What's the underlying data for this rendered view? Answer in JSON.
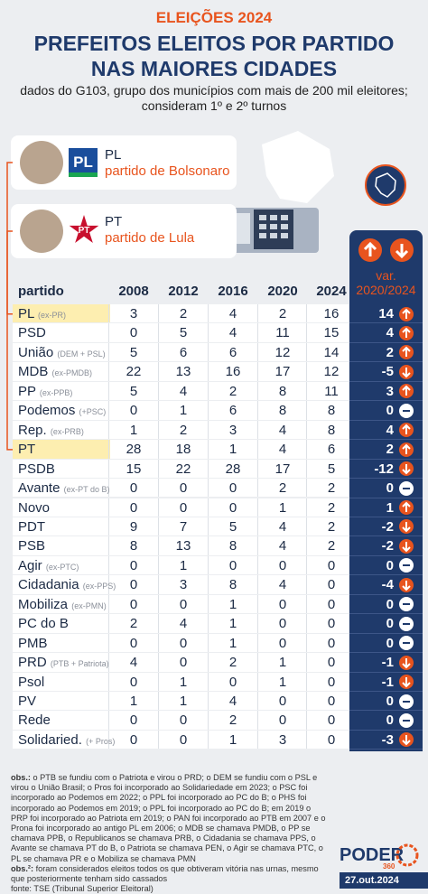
{
  "header": {
    "kicker": "ELEIÇÕES 2024",
    "title_lines": [
      "PREFEITOS ELEITOS POR PARTIDO",
      "NAS MAIORES CIDADES"
    ],
    "subtitle_lines": [
      "dados do G103, grupo dos municípios com mais de 200 mil eleitores;",
      "consideram 1º e 2º turnos"
    ]
  },
  "legend": [
    {
      "party": "PL",
      "desc": "partido de Bolsonaro"
    },
    {
      "party": "PT",
      "desc": "partido de Lula"
    }
  ],
  "table": {
    "columns": [
      "partido",
      "2008",
      "2012",
      "2016",
      "2020",
      "2024"
    ],
    "var_header": [
      "var.",
      "2020/2024"
    ],
    "rows": [
      {
        "name": "PL",
        "note": "(ex-PR)",
        "values": [
          3,
          2,
          4,
          2,
          16
        ],
        "var": 14,
        "highlight": true
      },
      {
        "name": "PSD",
        "values": [
          0,
          5,
          4,
          11,
          15
        ],
        "var": 4
      },
      {
        "name": "União",
        "note": "(DEM + PSL)",
        "values": [
          5,
          6,
          6,
          12,
          14
        ],
        "var": 2
      },
      {
        "name": "MDB",
        "note": "(ex-PMDB)",
        "values": [
          22,
          13,
          16,
          17,
          12
        ],
        "var": -5
      },
      {
        "name": "PP",
        "note": "(ex-PPB)",
        "values": [
          5,
          4,
          2,
          8,
          11
        ],
        "var": 3
      },
      {
        "name": "Podemos",
        "note": "(+PSC)",
        "values": [
          0,
          1,
          6,
          8,
          8
        ],
        "var": 0
      },
      {
        "name": "Rep.",
        "note": "(ex-PRB)",
        "values": [
          1,
          2,
          3,
          4,
          8
        ],
        "var": 4
      },
      {
        "name": "PT",
        "values": [
          28,
          18,
          1,
          4,
          6
        ],
        "var": 2,
        "highlight": true
      },
      {
        "name": "PSDB",
        "values": [
          15,
          22,
          28,
          17,
          5
        ],
        "var": -12
      },
      {
        "name": "Avante",
        "note": "(ex-PT do B)",
        "values": [
          0,
          0,
          0,
          2,
          2
        ],
        "var": 0
      },
      {
        "name": "Novo",
        "values": [
          0,
          0,
          0,
          1,
          2
        ],
        "var": 1
      },
      {
        "name": "PDT",
        "values": [
          9,
          7,
          5,
          4,
          2
        ],
        "var": -2
      },
      {
        "name": "PSB",
        "values": [
          8,
          13,
          8,
          4,
          2
        ],
        "var": -2
      },
      {
        "name": "Agir",
        "note": "(ex-PTC)",
        "values": [
          0,
          1,
          0,
          0,
          0
        ],
        "var": 0
      },
      {
        "name": "Cidadania",
        "note": "(ex-PPS)",
        "values": [
          0,
          3,
          8,
          4,
          0
        ],
        "var": -4
      },
      {
        "name": "Mobiliza",
        "note": "(ex-PMN)",
        "values": [
          0,
          0,
          1,
          0,
          0
        ],
        "var": 0
      },
      {
        "name": "PC do B",
        "values": [
          2,
          4,
          1,
          0,
          0
        ],
        "var": 0
      },
      {
        "name": "PMB",
        "values": [
          0,
          0,
          1,
          0,
          0
        ],
        "var": 0
      },
      {
        "name": "PRD",
        "note": "(PTB + Patriota)",
        "values": [
          4,
          0,
          2,
          1,
          0
        ],
        "var": -1
      },
      {
        "name": "Psol",
        "values": [
          0,
          1,
          0,
          1,
          0
        ],
        "var": -1
      },
      {
        "name": "PV",
        "values": [
          1,
          1,
          4,
          0,
          0
        ],
        "var": 0
      },
      {
        "name": "Rede",
        "values": [
          0,
          0,
          2,
          0,
          0
        ],
        "var": 0
      },
      {
        "name": "Solidaried.",
        "note": "(+ Pros)",
        "values": [
          0,
          0,
          1,
          3,
          0
        ],
        "var": -3
      }
    ]
  },
  "footer": {
    "notes": [
      {
        "label": "obs.:",
        "text": "o PTB se fundiu com o Patriota e virou o PRD; o DEM se fundiu com o PSL e virou o União Brasil; o Pros foi incorporado ao Solidariedade em 2023; o PSC foi incorporado ao Podemos em 2022; o PPL foi incorporado ao PC do B; o PHS foi incorporado ao Podemos em 2019; o PPL foi incorporado ao PC do B; em 2019 o PRP foi incorporado ao Patriota em 2019; o PAN foi incorporado ao PTB em 2007 e o Prona foi incorporado ao antigo PL em 2006; o MDB se chamava PMDB, o PP se chamava PPB, o Republicanos se chamava PRB, o Cidadania se chamava PPS, o Avante se chamava PT do B, o Patriota se chamava PEN, o Agir se chamava PTC, o PL se chamava PR e o Mobiliza se chamava PMN"
      },
      {
        "label": "obs.²:",
        "text": "foram considerados eleitos todos os que obtiveram vitória nas urnas, mesmo que posteriormente tenham sido cassados"
      }
    ],
    "source": "fonte: TSE (Tribunal Superior Eleitoral)",
    "brand": "PODER",
    "brand_sub": "360",
    "date": "27.out.2024"
  }
}
